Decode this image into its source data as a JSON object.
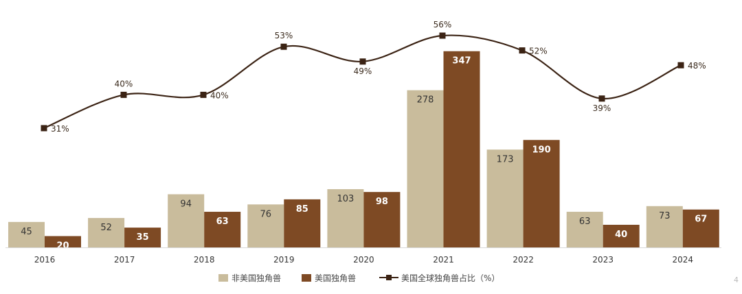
{
  "chart_data": {
    "type": "bar",
    "categories": [
      "2016",
      "2017",
      "2018",
      "2019",
      "2020",
      "2021",
      "2022",
      "2023",
      "2024"
    ],
    "series": [
      {
        "name": "非美国独角兽",
        "type": "bar",
        "values": [
          45,
          52,
          94,
          76,
          103,
          278,
          173,
          63,
          73
        ],
        "color": "#c9bc9c"
      },
      {
        "name": "美国独角兽",
        "type": "bar",
        "values": [
          20,
          35,
          63,
          85,
          98,
          347,
          190,
          40,
          67
        ],
        "color": "#7e4a24"
      },
      {
        "name": "美国全球独角兽占比（%）",
        "type": "line",
        "values": [
          31,
          40,
          40,
          53,
          49,
          56,
          52,
          39,
          48
        ],
        "color": "#3b2314"
      }
    ],
    "percent_labels": [
      "31%",
      "40%",
      "40%",
      "53%",
      "49%",
      "56%",
      "52%",
      "39%",
      "48%"
    ],
    "legend_position": "bottom",
    "grid": false
  },
  "page_number": "4"
}
